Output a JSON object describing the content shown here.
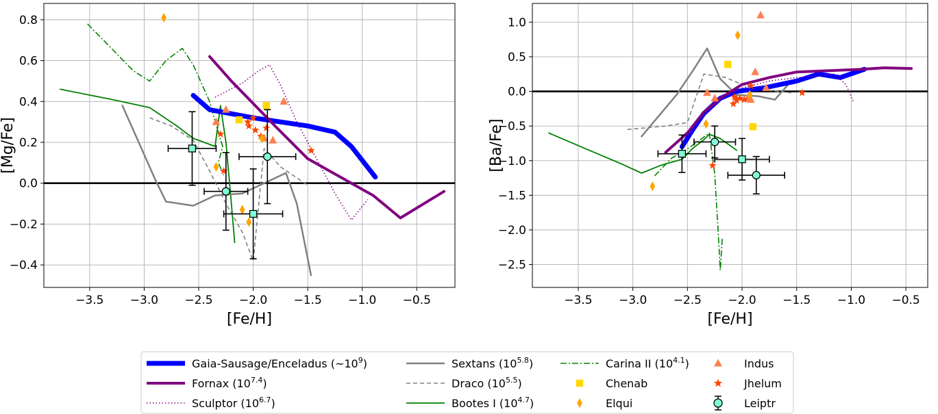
{
  "chart_data": [
    {
      "type": "line",
      "xlabel": "[Fe/H]",
      "ylabel": "[Mg/Fe]",
      "xlim": [
        -3.92,
        -0.15
      ],
      "ylim": [
        -0.51,
        0.88
      ],
      "xticks": [
        -3.5,
        -3.0,
        -2.5,
        -2.0,
        -1.5,
        -1.0,
        -0.5
      ],
      "xtick_labels": [
        "−3.5",
        "−3.0",
        "−2.5",
        "−2.0",
        "−1.5",
        "−1.0",
        "−0.5"
      ],
      "yticks": [
        -0.4,
        -0.2,
        0.0,
        0.2,
        0.4,
        0.6,
        0.8
      ],
      "ytick_labels": [
        "−0.4",
        "−0.2",
        "0.0",
        "0.2",
        "0.4",
        "0.6",
        "0.8"
      ],
      "grid": true,
      "lines": [
        {
          "id": "gse",
          "points": [
            [
              -2.55,
              0.43
            ],
            [
              -2.4,
              0.36
            ],
            [
              -2.0,
              0.32
            ],
            [
              -1.5,
              0.28
            ],
            [
              -1.25,
              0.25
            ],
            [
              -1.1,
              0.18
            ],
            [
              -0.88,
              0.03
            ]
          ]
        },
        {
          "id": "fornax",
          "points": [
            [
              -2.4,
              0.62
            ],
            [
              -2.2,
              0.5
            ],
            [
              -2.0,
              0.39
            ],
            [
              -1.8,
              0.28
            ],
            [
              -1.5,
              0.12
            ],
            [
              -1.2,
              0.03
            ],
            [
              -0.9,
              -0.06
            ],
            [
              -0.65,
              -0.17
            ],
            [
              -0.25,
              -0.04
            ]
          ]
        },
        {
          "id": "sculptor",
          "points": [
            [
              -2.35,
              0.42
            ],
            [
              -2.1,
              0.49
            ],
            [
              -1.95,
              0.55
            ],
            [
              -1.85,
              0.58
            ],
            [
              -1.75,
              0.48
            ],
            [
              -1.6,
              0.3
            ],
            [
              -1.4,
              0.1
            ],
            [
              -1.25,
              -0.05
            ],
            [
              -1.1,
              -0.18
            ],
            [
              -0.95,
              -0.08
            ]
          ]
        },
        {
          "id": "sextans",
          "points": [
            [
              -3.2,
              0.38
            ],
            [
              -3.05,
              0.2
            ],
            [
              -2.9,
              0.02
            ],
            [
              -2.8,
              -0.09
            ],
            [
              -2.55,
              -0.11
            ],
            [
              -2.35,
              -0.06
            ],
            [
              -2.1,
              -0.05
            ],
            [
              -1.9,
              0.0
            ],
            [
              -1.7,
              0.05
            ],
            [
              -1.6,
              -0.1
            ],
            [
              -1.47,
              -0.45
            ]
          ]
        },
        {
          "id": "draco",
          "points": [
            [
              -2.95,
              0.32
            ],
            [
              -2.75,
              0.28
            ],
            [
              -2.55,
              0.21
            ],
            [
              -2.4,
              0.06
            ],
            [
              -2.25,
              -0.1
            ],
            [
              -2.1,
              -0.24
            ],
            [
              -2.0,
              -0.38
            ],
            [
              -1.9,
              0.17
            ],
            [
              -1.75,
              0.08
            ],
            [
              -1.5,
              -0.01
            ]
          ]
        },
        {
          "id": "bootes",
          "points": [
            [
              -3.77,
              0.46
            ],
            [
              -3.3,
              0.41
            ],
            [
              -2.95,
              0.37
            ],
            [
              -2.7,
              0.28
            ],
            [
              -2.55,
              0.22
            ],
            [
              -2.35,
              0.18
            ],
            [
              -2.3,
              0.38
            ],
            [
              -2.25,
              0.2
            ],
            [
              -2.2,
              -0.1
            ],
            [
              -2.17,
              -0.29
            ]
          ]
        },
        {
          "id": "carina",
          "points": [
            [
              -3.52,
              0.78
            ],
            [
              -3.3,
              0.66
            ],
            [
              -3.1,
              0.55
            ],
            [
              -2.95,
              0.5
            ],
            [
              -2.8,
              0.6
            ],
            [
              -2.65,
              0.66
            ],
            [
              -2.55,
              0.58
            ],
            [
              -2.4,
              0.4
            ],
            [
              -2.32,
              0.25
            ],
            [
              -2.28,
              0.18
            ],
            [
              -2.32,
              0.1
            ],
            [
              -2.27,
              0.04
            ]
          ]
        }
      ],
      "points": [
        {
          "id": "indus",
          "points": [
            [
              -2.34,
              0.3
            ],
            [
              -2.25,
              0.36
            ],
            [
              -1.72,
              0.4
            ],
            [
              -1.9,
              0.22
            ],
            [
              -1.82,
              0.21
            ]
          ]
        },
        {
          "id": "jhelum",
          "points": [
            [
              -2.3,
              0.24
            ],
            [
              -2.27,
              0.06
            ],
            [
              -2.05,
              0.3
            ],
            [
              -2.04,
              0.28
            ],
            [
              -2.0,
              0.32
            ],
            [
              -1.98,
              0.26
            ],
            [
              -1.93,
              0.23
            ],
            [
              -1.88,
              0.27
            ],
            [
              -1.47,
              0.16
            ]
          ]
        },
        {
          "id": "chenab",
          "points": [
            [
              -2.13,
              0.31
            ],
            [
              -1.88,
              0.38
            ]
          ]
        },
        {
          "id": "elqui",
          "points": [
            [
              -2.82,
              0.81
            ],
            [
              -2.34,
              0.08
            ],
            [
              -2.1,
              -0.13
            ],
            [
              -2.04,
              -0.19
            ],
            [
              -1.92,
              0.22
            ]
          ]
        }
      ],
      "leiptr": [
        {
          "marker": "square",
          "x": -2.56,
          "y": 0.17,
          "xerr": 0.22,
          "yerr": 0.18
        },
        {
          "marker": "circle",
          "x": -2.25,
          "y": -0.04,
          "xerr": 0.2,
          "yerr": 0.19
        },
        {
          "marker": "square",
          "x": -2.0,
          "y": -0.15,
          "xerr": 0.27,
          "yerr": 0.22
        },
        {
          "marker": "circle",
          "x": -1.87,
          "y": 0.13,
          "xerr": 0.26,
          "yerr": 0.23
        }
      ],
      "hline": 0.0
    },
    {
      "type": "line",
      "xlabel": "[Fe/H]",
      "ylabel": "[Ba/Fe]",
      "xlim": [
        -3.92,
        -0.3
      ],
      "ylim": [
        -2.83,
        1.27
      ],
      "xticks": [
        -3.5,
        -3.0,
        -2.5,
        -2.0,
        -1.5,
        -1.0,
        -0.5
      ],
      "xtick_labels": [
        "−3.5",
        "−3.0",
        "−2.5",
        "−2.0",
        "−1.5",
        "−1.0",
        "−0.5"
      ],
      "yticks": [
        -2.5,
        -2.0,
        -1.5,
        -1.0,
        -0.5,
        0.0,
        0.5,
        1.0
      ],
      "ytick_labels": [
        "−2.5",
        "−2.0",
        "−1.5",
        "−1.0",
        "−0.5",
        "0.0",
        "0.5",
        "1.0"
      ],
      "grid": true,
      "lines": [
        {
          "id": "gse",
          "points": [
            [
              -2.55,
              -0.8
            ],
            [
              -2.45,
              -0.55
            ],
            [
              -2.35,
              -0.32
            ],
            [
              -2.2,
              -0.1
            ],
            [
              -2.05,
              0.0
            ],
            [
              -1.8,
              0.05
            ],
            [
              -1.5,
              0.15
            ],
            [
              -1.3,
              0.25
            ],
            [
              -1.1,
              0.2
            ],
            [
              -0.88,
              0.32
            ]
          ]
        },
        {
          "id": "fornax",
          "points": [
            [
              -2.7,
              -0.88
            ],
            [
              -2.5,
              -0.6
            ],
            [
              -2.35,
              -0.3
            ],
            [
              -2.2,
              -0.1
            ],
            [
              -2.0,
              0.1
            ],
            [
              -1.75,
              0.2
            ],
            [
              -1.5,
              0.28
            ],
            [
              -1.2,
              0.3
            ],
            [
              -0.9,
              0.32
            ],
            [
              -0.7,
              0.34
            ],
            [
              -0.45,
              0.33
            ]
          ]
        },
        {
          "id": "sculptor",
          "points": [
            [
              -2.55,
              -0.75
            ],
            [
              -2.4,
              -0.45
            ],
            [
              -2.2,
              -0.1
            ],
            [
              -2.0,
              0.05
            ],
            [
              -1.75,
              0.15
            ],
            [
              -1.5,
              0.2
            ],
            [
              -1.3,
              0.22
            ],
            [
              -1.15,
              0.25
            ],
            [
              -1.05,
              0.1
            ],
            [
              -0.98,
              -0.15
            ]
          ]
        },
        {
          "id": "sextans",
          "points": [
            [
              -2.92,
              -0.65
            ],
            [
              -2.6,
              -0.05
            ],
            [
              -2.45,
              0.3
            ],
            [
              -2.32,
              0.62
            ],
            [
              -2.2,
              0.18
            ],
            [
              -2.05,
              -0.05
            ],
            [
              -1.85,
              -0.07
            ],
            [
              -1.7,
              -0.12
            ],
            [
              -1.55,
              0.15
            ]
          ]
        },
        {
          "id": "draco",
          "points": [
            [
              -3.05,
              -0.55
            ],
            [
              -2.7,
              -0.5
            ],
            [
              -2.5,
              -0.45
            ],
            [
              -2.35,
              0.25
            ],
            [
              -2.15,
              0.2
            ],
            [
              -2.0,
              0.1
            ],
            [
              -1.8,
              0.02
            ],
            [
              -1.55,
              -0.02
            ]
          ]
        },
        {
          "id": "bootes",
          "points": [
            [
              -3.77,
              -0.6
            ],
            [
              -3.4,
              -0.85
            ],
            [
              -3.1,
              -1.05
            ],
            [
              -2.92,
              -1.18
            ],
            [
              -2.75,
              -1.07
            ],
            [
              -2.55,
              -0.98
            ],
            [
              -2.45,
              -0.82
            ],
            [
              -2.35,
              -0.7
            ],
            [
              -2.3,
              -0.62
            ],
            [
              -2.2,
              -0.68
            ],
            [
              -2.05,
              -0.85
            ]
          ]
        },
        {
          "id": "carina",
          "points": [
            [
              -2.8,
              -1.22
            ],
            [
              -2.65,
              -0.97
            ],
            [
              -2.5,
              -0.83
            ],
            [
              -2.4,
              -0.72
            ],
            [
              -2.3,
              -0.6
            ],
            [
              -2.25,
              -1.2
            ],
            [
              -2.22,
              -2.0
            ],
            [
              -2.2,
              -2.58
            ],
            [
              -2.18,
              -2.1
            ]
          ]
        }
      ],
      "points": [
        {
          "id": "indus",
          "points": [
            [
              -2.32,
              -0.02
            ],
            [
              -2.25,
              -0.1
            ],
            [
              -1.95,
              -0.1
            ],
            [
              -1.92,
              -0.12
            ],
            [
              -1.88,
              0.28
            ],
            [
              -1.83,
              1.1
            ],
            [
              -1.78,
              0.05
            ]
          ]
        },
        {
          "id": "jhelum",
          "points": [
            [
              -2.27,
              -1.07
            ],
            [
              -2.08,
              -0.18
            ],
            [
              -2.07,
              -0.08
            ],
            [
              -2.05,
              -0.13
            ],
            [
              -2.02,
              -0.1
            ],
            [
              -1.98,
              -0.12
            ],
            [
              -1.92,
              0.08
            ],
            [
              -1.45,
              -0.02
            ]
          ]
        },
        {
          "id": "chenab",
          "points": [
            [
              -2.13,
              0.39
            ],
            [
              -1.9,
              -0.51
            ]
          ]
        },
        {
          "id": "elqui",
          "points": [
            [
              -2.82,
              -1.37
            ],
            [
              -2.33,
              -0.47
            ],
            [
              -2.04,
              0.81
            ],
            [
              -1.93,
              -0.05
            ]
          ]
        }
      ],
      "leiptr": [
        {
          "marker": "square",
          "x": -2.55,
          "y": -0.9,
          "xerr": 0.22,
          "yerr": 0.27
        },
        {
          "marker": "circle",
          "x": -2.25,
          "y": -0.73,
          "xerr": 0.19,
          "yerr": 0.23
        },
        {
          "marker": "square",
          "x": -2.0,
          "y": -0.98,
          "xerr": 0.25,
          "yerr": 0.3
        },
        {
          "marker": "circle",
          "x": -1.87,
          "y": -1.21,
          "xerr": 0.26,
          "yerr": 0.27
        }
      ],
      "hline": 0.0
    }
  ],
  "series_styles": {
    "gse": {
      "color": "#0000ff",
      "width": 7,
      "dash": ""
    },
    "fornax": {
      "color": "#800080",
      "width": 4,
      "dash": ""
    },
    "sculptor": {
      "color": "#800080",
      "width": 1.6,
      "dash": "1.5,3"
    },
    "sextans": {
      "color": "#808080",
      "width": 2.5,
      "dash": ""
    },
    "draco": {
      "color": "#808080",
      "width": 1.6,
      "dash": "6,4"
    },
    "bootes": {
      "color": "#008000",
      "width": 1.8,
      "dash": ""
    },
    "carina": {
      "color": "#008000",
      "width": 1.6,
      "dash": "9,3,2,3"
    },
    "indus": {
      "color": "#ff7f50",
      "marker": "triangle"
    },
    "jhelum": {
      "color": "#ff4500",
      "marker": "star"
    },
    "chenab": {
      "color": "#ffd700",
      "marker": "square"
    },
    "elqui": {
      "color": "#ffa500",
      "marker": "diamond"
    },
    "leiptr": {
      "color": "#7fffd4",
      "marker": "errorbar"
    }
  },
  "legend": {
    "placement": "bottom-center",
    "entries": [
      {
        "id": "gse",
        "name": "Gaia-Sausage/Enceladus (~10",
        "sup": "9",
        "tail": ")"
      },
      {
        "id": "fornax",
        "name": "Fornax (10",
        "sup": "7.4",
        "tail": ")"
      },
      {
        "id": "sculptor",
        "name": "Sculptor (10",
        "sup": "6.7",
        "tail": ")"
      },
      {
        "id": "sextans",
        "name": "Sextans (10",
        "sup": "5.8",
        "tail": ")"
      },
      {
        "id": "draco",
        "name": "Draco (10",
        "sup": "5.5",
        "tail": ")"
      },
      {
        "id": "bootes",
        "name": "Bootes I (10",
        "sup": "4.7",
        "tail": ")"
      },
      {
        "id": "carina",
        "name": "Carina II (10",
        "sup": "4.1",
        "tail": ")"
      },
      {
        "id": "chenab",
        "name": "Chenab",
        "sup": "",
        "tail": ""
      },
      {
        "id": "elqui",
        "name": "Elqui",
        "sup": "",
        "tail": ""
      },
      {
        "id": "indus",
        "name": "Indus",
        "sup": "",
        "tail": ""
      },
      {
        "id": "jhelum",
        "name": "Jhelum",
        "sup": "",
        "tail": ""
      },
      {
        "id": "leiptr",
        "name": "Leiptr",
        "sup": "",
        "tail": ""
      }
    ]
  }
}
